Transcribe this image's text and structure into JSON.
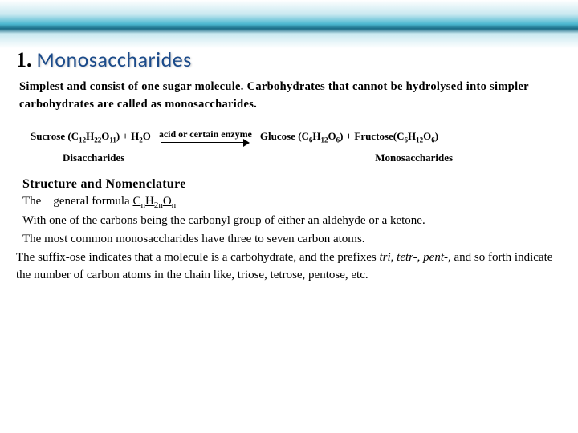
{
  "header": {
    "number": "1.",
    "title": "Monosaccharides"
  },
  "intro": "Simplest and consist of one sugar molecule. Carbohydrates that cannot be hydrolysed into simpler carbohydrates are called as monosaccharides.",
  "reaction": {
    "reactant_prefix": "Sucrose (C",
    "r_s1": "12",
    "r_m1": "H",
    "r_s2": "22",
    "r_m2": "O",
    "r_s3": "11",
    "reactant_suffix": ") + H",
    "r_s4": "2",
    "r_m3": "O",
    "arrow_label": "acid or certain enzyme",
    "product_prefix": "Glucose (C",
    "p_s1": "6",
    "p_m1": "H",
    "p_s2": "12",
    "p_m2": "O",
    "p_s3": "6",
    "product_mid": ") + Fructose(C",
    "p_s4": "6",
    "p_m3": "H",
    "p_s5": "12",
    "p_m4": "O",
    "p_s6": "6",
    "product_suffix": ")"
  },
  "labels": {
    "left": "Disaccharides",
    "right": "Monosaccharides"
  },
  "section_title": "Structure and Nomenclature",
  "body": {
    "line1_a": "The ",
    "line1_b": "general formula ",
    "formula_c": "C",
    "formula_n1": "n",
    "formula_h": "H",
    "formula_2n": "2n",
    "formula_o": "O",
    "formula_n2": "n",
    "line2": "With one of the carbons being the carbonyl group of either an aldehyde or a ketone.",
    "line3": "The most common monosaccharides have three to seven carbon atoms.",
    "line4_a": "The suffix-ose indicates that a molecule is a carbohydrate, and the prefixes ",
    "prefix1": "tri",
    "line4_b": ", ",
    "prefix2": "tetr-, pent-,",
    "line4_c": " and so forth indicate the number of carbon atoms in the chain like, triose, tetrose, pentose, etc."
  },
  "colors": {
    "title_color": "#1a4a8a",
    "text_color": "#000000",
    "bg": "#ffffff"
  }
}
